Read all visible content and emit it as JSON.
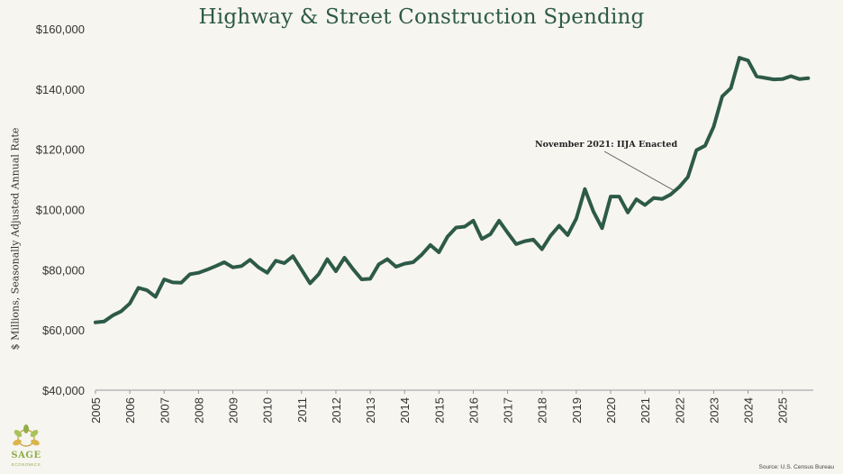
{
  "chart_data": {
    "type": "line",
    "title": "Highway & Street Construction Spending",
    "ylabel": "$ Millions, Seasonally Adjusted Annual Rate",
    "xlabel": "",
    "ylim": [
      40000,
      160000
    ],
    "xlim": [
      2005,
      2025.9
    ],
    "yticks": [
      40000,
      60000,
      80000,
      100000,
      120000,
      140000,
      160000
    ],
    "ytick_labels": [
      "$40,000",
      "$60,000",
      "$80,000",
      "$100,000",
      "$120,000",
      "$140,000",
      "$160,000"
    ],
    "xtick_labels": [
      "2005",
      "2006",
      "2007",
      "2008",
      "2009",
      "2010",
      "2011",
      "2012",
      "2013",
      "2014",
      "2015",
      "2016",
      "2017",
      "2018",
      "2019",
      "2020",
      "2021",
      "2022",
      "2023",
      "2024",
      "2025"
    ],
    "grid": false,
    "series": [
      {
        "color": "#2d5a48",
        "points": [
          [
            2005.0,
            62500
          ],
          [
            2005.25,
            62800
          ],
          [
            2005.5,
            64800
          ],
          [
            2005.75,
            66200
          ],
          [
            2006.0,
            68800
          ],
          [
            2006.25,
            74000
          ],
          [
            2006.5,
            73200
          ],
          [
            2006.75,
            71000
          ],
          [
            2007.0,
            76800
          ],
          [
            2007.25,
            75800
          ],
          [
            2007.5,
            75700
          ],
          [
            2007.75,
            78500
          ],
          [
            2008.0,
            79000
          ],
          [
            2008.25,
            80000
          ],
          [
            2008.5,
            81200
          ],
          [
            2008.75,
            82500
          ],
          [
            2009.0,
            80800
          ],
          [
            2009.25,
            81200
          ],
          [
            2009.5,
            83300
          ],
          [
            2009.75,
            80800
          ],
          [
            2010.0,
            79000
          ],
          [
            2010.25,
            83000
          ],
          [
            2010.5,
            82200
          ],
          [
            2010.75,
            84500
          ],
          [
            2011.0,
            80000
          ],
          [
            2011.25,
            75500
          ],
          [
            2011.5,
            78500
          ],
          [
            2011.75,
            83500
          ],
          [
            2012.0,
            79500
          ],
          [
            2012.25,
            84000
          ],
          [
            2012.5,
            80200
          ],
          [
            2012.75,
            76800
          ],
          [
            2013.0,
            77000
          ],
          [
            2013.25,
            81800
          ],
          [
            2013.5,
            83500
          ],
          [
            2013.75,
            81000
          ],
          [
            2014.0,
            82000
          ],
          [
            2014.25,
            82500
          ],
          [
            2014.5,
            85000
          ],
          [
            2014.75,
            88200
          ],
          [
            2015.0,
            85800
          ],
          [
            2015.25,
            91000
          ],
          [
            2015.5,
            94000
          ],
          [
            2015.75,
            94300
          ],
          [
            2016.0,
            96300
          ],
          [
            2016.25,
            90200
          ],
          [
            2016.5,
            91800
          ],
          [
            2016.75,
            96300
          ],
          [
            2017.0,
            92300
          ],
          [
            2017.25,
            88500
          ],
          [
            2017.5,
            89500
          ],
          [
            2017.75,
            90000
          ],
          [
            2018.0,
            86800
          ],
          [
            2018.25,
            91300
          ],
          [
            2018.5,
            94600
          ],
          [
            2018.75,
            91500
          ],
          [
            2019.0,
            97000
          ],
          [
            2019.25,
            106800
          ],
          [
            2019.5,
            99300
          ],
          [
            2019.75,
            93800
          ],
          [
            2020.0,
            104300
          ],
          [
            2020.25,
            104300
          ],
          [
            2020.5,
            99000
          ],
          [
            2020.75,
            103400
          ],
          [
            2021.0,
            101500
          ],
          [
            2021.25,
            103800
          ],
          [
            2021.5,
            103500
          ],
          [
            2021.75,
            105000
          ],
          [
            2022.0,
            107500
          ],
          [
            2022.25,
            110800
          ],
          [
            2022.5,
            119700
          ],
          [
            2022.75,
            121200
          ],
          [
            2023.0,
            127500
          ],
          [
            2023.25,
            137600
          ],
          [
            2023.5,
            140300
          ],
          [
            2023.75,
            150400
          ],
          [
            2024.0,
            149500
          ],
          [
            2024.25,
            144200
          ],
          [
            2024.5,
            143700
          ],
          [
            2024.75,
            143200
          ],
          [
            2025.0,
            143300
          ],
          [
            2025.25,
            144300
          ],
          [
            2025.5,
            143300
          ],
          [
            2025.75,
            143600
          ]
        ]
      }
    ],
    "annotations": [
      {
        "text": "November 2021: IIJA Enacted",
        "x": 2021.83,
        "y": 105500
      }
    ]
  },
  "source_note": "Source: U.S. Census Bureau",
  "logo": {
    "name": "SAGE",
    "sub": "ECONOMICS"
  }
}
